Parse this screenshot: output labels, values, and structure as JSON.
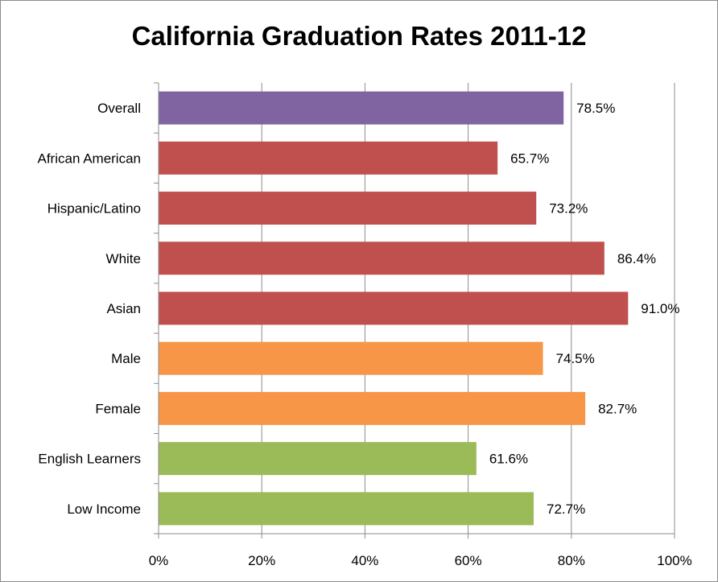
{
  "chart_data": {
    "type": "bar",
    "orientation": "horizontal",
    "title": "California Graduation Rates 2011-12",
    "xlabel": "",
    "ylabel": "",
    "xlim": [
      0,
      100
    ],
    "x_ticks": [
      0,
      20,
      40,
      60,
      80,
      100
    ],
    "x_tick_labels": [
      "0%",
      "20%",
      "40%",
      "60%",
      "80%",
      "100%"
    ],
    "grid": "vertical",
    "legend": "none",
    "categories": [
      "Overall",
      "African American",
      "Hispanic/Latino",
      "White",
      "Asian",
      "Male",
      "Female",
      "English Learners",
      "Low Income"
    ],
    "values": [
      78.5,
      65.7,
      73.2,
      86.4,
      91.0,
      74.5,
      82.7,
      61.6,
      72.7
    ],
    "value_labels": [
      "78.5%",
      "65.7%",
      "73.2%",
      "86.4%",
      "91.0%",
      "74.5%",
      "82.7%",
      "61.6%",
      "72.7%"
    ],
    "bar_colors": [
      "#8064a2",
      "#c0504d",
      "#c0504d",
      "#c0504d",
      "#c0504d",
      "#f79646",
      "#f79646",
      "#9bbb59",
      "#9bbb59"
    ]
  }
}
